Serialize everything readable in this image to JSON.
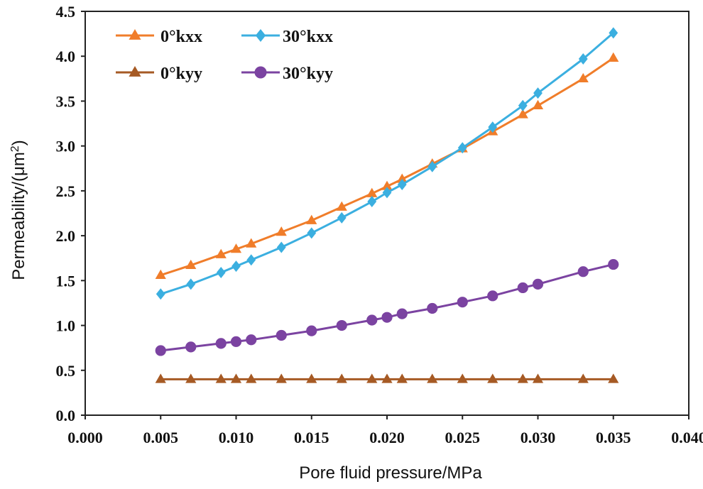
{
  "chart_data": {
    "type": "line",
    "title": "",
    "xlabel": "Pore fluid pressure/MPa",
    "ylabel_main": "Permeability/(μm",
    "ylabel_sup": "2",
    "ylabel_end": ")",
    "xlim": [
      0.0,
      0.04
    ],
    "ylim": [
      0.0,
      4.5
    ],
    "x_ticks": [
      "0.000",
      "0.005",
      "0.010",
      "0.015",
      "0.020",
      "0.025",
      "0.030",
      "0.035",
      "0.040"
    ],
    "y_ticks": [
      "0.0",
      "0.5",
      "1.0",
      "1.5",
      "2.0",
      "2.5",
      "3.0",
      "3.5",
      "4.0",
      "4.5"
    ],
    "grid": false,
    "legend_position": "top-left",
    "x": [
      0.005,
      0.007,
      0.009,
      0.01,
      0.011,
      0.013,
      0.015,
      0.017,
      0.019,
      0.02,
      0.021,
      0.023,
      0.025,
      0.027,
      0.029,
      0.03,
      0.033,
      0.035
    ],
    "series": [
      {
        "name": "0°kxx",
        "color": "#F07D2A",
        "marker": "triangle",
        "values": [
          1.56,
          1.67,
          1.79,
          1.85,
          1.91,
          2.04,
          2.17,
          2.32,
          2.47,
          2.55,
          2.63,
          2.8,
          2.97,
          3.16,
          3.35,
          3.45,
          3.75,
          3.98
        ]
      },
      {
        "name": "30°kxx",
        "color": "#3BAFE0",
        "marker": "diamond",
        "values": [
          1.35,
          1.46,
          1.59,
          1.66,
          1.73,
          1.87,
          2.03,
          2.2,
          2.38,
          2.48,
          2.57,
          2.77,
          2.98,
          3.21,
          3.45,
          3.59,
          3.97,
          4.26
        ]
      },
      {
        "name": "0°kyy",
        "color": "#A65A24",
        "marker": "triangle",
        "values": [
          0.4,
          0.4,
          0.4,
          0.4,
          0.4,
          0.4,
          0.4,
          0.4,
          0.4,
          0.4,
          0.4,
          0.4,
          0.4,
          0.4,
          0.4,
          0.4,
          0.4,
          0.4
        ]
      },
      {
        "name": "30°kyy",
        "color": "#7B43A1",
        "marker": "circle",
        "values": [
          0.72,
          0.76,
          0.8,
          0.82,
          0.84,
          0.89,
          0.94,
          1.0,
          1.06,
          1.09,
          1.13,
          1.19,
          1.26,
          1.33,
          1.42,
          1.46,
          1.6,
          1.68
        ]
      }
    ]
  }
}
